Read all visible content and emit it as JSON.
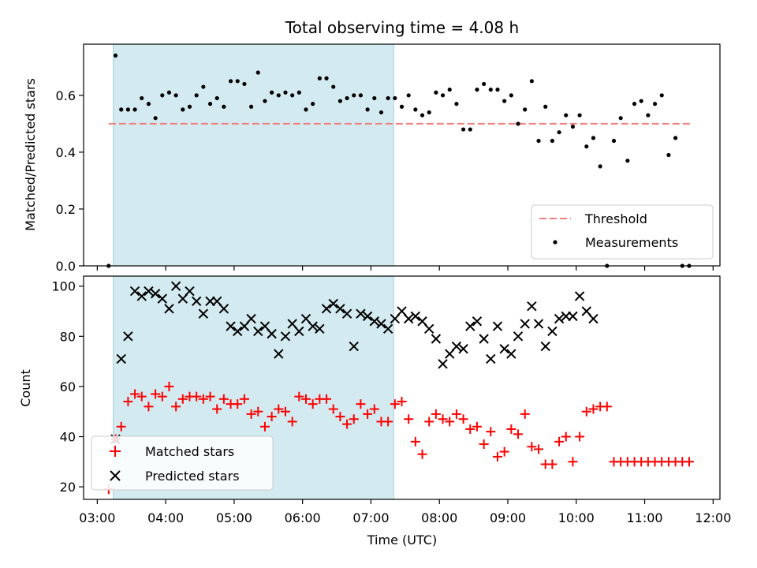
{
  "chart_data": [
    {
      "type": "scatter",
      "title": "Total observing time = 4.08 h",
      "xlabel": "",
      "ylabel": "Matched/Predicted stars",
      "ylim": [
        0,
        0.78
      ],
      "yticks": [
        0.0,
        0.2,
        0.4,
        0.6
      ],
      "ytick_labels": [
        "0.0",
        "0.2",
        "0.4",
        "0.6"
      ],
      "xlim": [
        "02:48",
        "12:06"
      ],
      "shaded_interval": [
        "03:14",
        "07:20"
      ],
      "shaded_color": "#d3eaf0",
      "threshold": {
        "name": "Threshold",
        "value": 0.5,
        "x_range": [
          "03:10",
          "11:40"
        ],
        "color": "#f08080"
      },
      "measurements_color": "#000000",
      "legend": {
        "position": "lower right",
        "entries": [
          "Threshold",
          "Measurements"
        ]
      },
      "series": [
        {
          "name": "Measurements",
          "x": [
            "03:10",
            "03:16",
            "03:21",
            "03:27",
            "03:33",
            "03:39",
            "03:45",
            "03:51",
            "03:57",
            "04:03",
            "04:09",
            "04:15",
            "04:21",
            "04:27",
            "04:33",
            "04:39",
            "04:45",
            "04:51",
            "04:57",
            "05:03",
            "05:09",
            "05:15",
            "05:21",
            "05:27",
            "05:33",
            "05:39",
            "05:45",
            "05:51",
            "05:57",
            "06:03",
            "06:09",
            "06:15",
            "06:21",
            "06:27",
            "06:33",
            "06:39",
            "06:45",
            "06:51",
            "06:57",
            "07:03",
            "07:09",
            "07:15",
            "07:21",
            "07:27",
            "07:33",
            "07:39",
            "07:45",
            "07:51",
            "07:57",
            "08:03",
            "08:09",
            "08:15",
            "08:21",
            "08:27",
            "08:33",
            "08:39",
            "08:45",
            "08:51",
            "08:57",
            "09:03",
            "09:09",
            "09:15",
            "09:21",
            "09:27",
            "09:33",
            "09:39",
            "09:45",
            "09:51",
            "09:57",
            "10:03",
            "10:09",
            "10:15",
            "10:21",
            "10:27",
            "10:33",
            "10:39",
            "10:45",
            "10:51",
            "10:57",
            "11:03",
            "11:09",
            "11:15",
            "11:21",
            "11:27",
            "11:33",
            "11:39"
          ],
          "values": [
            0.0,
            0.74,
            0.55,
            0.55,
            0.55,
            0.59,
            0.57,
            0.52,
            0.6,
            0.61,
            0.6,
            0.55,
            0.56,
            0.6,
            0.63,
            0.57,
            0.59,
            0.56,
            0.65,
            0.65,
            0.64,
            0.56,
            0.68,
            0.58,
            0.61,
            0.6,
            0.61,
            0.6,
            0.61,
            0.55,
            0.57,
            0.66,
            0.66,
            0.63,
            0.58,
            0.59,
            0.6,
            0.6,
            0.55,
            0.59,
            0.54,
            0.59,
            0.59,
            0.56,
            0.6,
            0.55,
            0.53,
            0.54,
            0.61,
            0.6,
            0.62,
            0.57,
            0.48,
            0.48,
            0.62,
            0.64,
            0.62,
            0.62,
            0.58,
            0.6,
            0.5,
            0.55,
            0.65,
            0.44,
            0.56,
            0.44,
            0.47,
            0.53,
            0.49,
            0.53,
            0.42,
            0.45,
            0.35,
            0.0,
            0.44,
            0.52,
            0.37,
            0.57,
            0.58,
            0.53,
            0.57,
            0.6,
            0.39,
            0.45,
            0.0,
            0.0
          ]
        }
      ]
    },
    {
      "type": "scatter",
      "xlabel": "Time (UTC)",
      "ylabel": "Count",
      "ylim": [
        15,
        104
      ],
      "yticks": [
        20,
        40,
        60,
        80,
        100
      ],
      "ytick_labels": [
        "20",
        "40",
        "60",
        "80",
        "100"
      ],
      "xlim": [
        "02:48",
        "12:06"
      ],
      "xticks": [
        "03:00",
        "04:00",
        "05:00",
        "06:00",
        "07:00",
        "08:00",
        "09:00",
        "10:00",
        "11:00",
        "12:00"
      ],
      "xtick_labels": [
        "03:00",
        "04:00",
        "05:00",
        "06:00",
        "07:00",
        "08:00",
        "09:00",
        "10:00",
        "11:00",
        "12:00"
      ],
      "shaded_interval": [
        "03:14",
        "07:20"
      ],
      "shaded_color": "#d3eaf0",
      "legend": {
        "position": "lower left",
        "entries": [
          "Matched stars",
          "Predicted stars"
        ]
      },
      "series": [
        {
          "name": "Matched stars",
          "marker": "+",
          "color": "#ff0000",
          "x": [
            "03:10",
            "03:16",
            "03:21",
            "03:27",
            "03:33",
            "03:39",
            "03:45",
            "03:51",
            "03:57",
            "04:03",
            "04:09",
            "04:15",
            "04:21",
            "04:27",
            "04:33",
            "04:39",
            "04:45",
            "04:51",
            "04:57",
            "05:03",
            "05:09",
            "05:15",
            "05:21",
            "05:27",
            "05:33",
            "05:39",
            "05:45",
            "05:51",
            "05:57",
            "06:03",
            "06:09",
            "06:15",
            "06:21",
            "06:27",
            "06:33",
            "06:39",
            "06:45",
            "06:51",
            "06:57",
            "07:03",
            "07:09",
            "07:15",
            "07:21",
            "07:27",
            "07:33",
            "07:39",
            "07:45",
            "07:51",
            "07:57",
            "08:03",
            "08:09",
            "08:15",
            "08:21",
            "08:27",
            "08:33",
            "08:39",
            "08:45",
            "08:51",
            "08:57",
            "09:03",
            "09:09",
            "09:15",
            "09:21",
            "09:27",
            "09:33",
            "09:39",
            "09:45",
            "09:51",
            "09:57",
            "10:03",
            "10:09",
            "10:15",
            "10:21",
            "10:27",
            "10:33",
            "10:39",
            "10:45",
            "10:51",
            "10:57",
            "11:03",
            "11:09",
            "11:15",
            "11:21",
            "11:27",
            "11:33",
            "11:39"
          ],
          "values": [
            19,
            39,
            44,
            54,
            57,
            56,
            52,
            57,
            56,
            60,
            52,
            55,
            56,
            56,
            55,
            56,
            51,
            55,
            53,
            53,
            55,
            49,
            50,
            44,
            48,
            51,
            50,
            46,
            56,
            55,
            53,
            55,
            55,
            51,
            48,
            45,
            47,
            53,
            49,
            51,
            46,
            46,
            53,
            54,
            47,
            38,
            33,
            46,
            49,
            47,
            46,
            49,
            47,
            43,
            44,
            37,
            42,
            32,
            34,
            43,
            41,
            49,
            36,
            35,
            29,
            29,
            38,
            40,
            30,
            40,
            50,
            51,
            52,
            52,
            30,
            30,
            30,
            30,
            30,
            30,
            30,
            30,
            30,
            30,
            30,
            30
          ]
        },
        {
          "name": "Predicted stars",
          "marker": "x",
          "color": "#000000",
          "x": [
            "03:16",
            "03:21",
            "03:27",
            "03:33",
            "03:39",
            "03:45",
            "03:51",
            "03:57",
            "04:03",
            "04:09",
            "04:15",
            "04:21",
            "04:27",
            "04:33",
            "04:39",
            "04:45",
            "04:51",
            "04:57",
            "05:03",
            "05:09",
            "05:15",
            "05:21",
            "05:27",
            "05:33",
            "05:39",
            "05:45",
            "05:51",
            "05:57",
            "06:03",
            "06:09",
            "06:15",
            "06:21",
            "06:27",
            "06:33",
            "06:39",
            "06:45",
            "06:51",
            "06:57",
            "07:03",
            "07:09",
            "07:15",
            "07:21",
            "07:27",
            "07:33",
            "07:39",
            "07:45",
            "07:51",
            "07:57",
            "08:03",
            "08:09",
            "08:15",
            "08:21",
            "08:27",
            "08:33",
            "08:39",
            "08:45",
            "08:51",
            "08:57",
            "09:03",
            "09:09",
            "09:15",
            "09:21",
            "09:27",
            "09:33",
            "09:39",
            "09:45",
            "09:51",
            "09:57",
            "10:03",
            "10:09",
            "10:15"
          ],
          "values": [
            39,
            71,
            80,
            98,
            96,
            98,
            97,
            95,
            91,
            100,
            95,
            98,
            94,
            89,
            94,
            94,
            91,
            84,
            82,
            84,
            87,
            82,
            84,
            81,
            73,
            80,
            85,
            82,
            87,
            84,
            83,
            91,
            93,
            91,
            89,
            76,
            89,
            88,
            86,
            85,
            83,
            87,
            90,
            87,
            88,
            86,
            83,
            79,
            69,
            73,
            76,
            75,
            84,
            86,
            79,
            71,
            84,
            75,
            73,
            80,
            85,
            92,
            85,
            76,
            82,
            87,
            88,
            88,
            96,
            90,
            87
          ]
        }
      ]
    }
  ]
}
